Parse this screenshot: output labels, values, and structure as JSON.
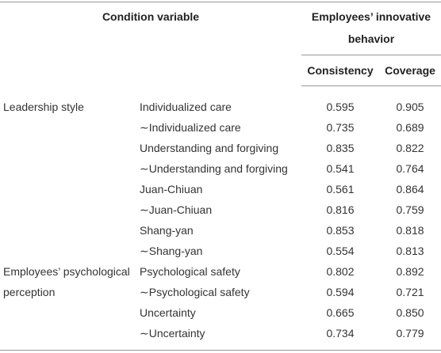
{
  "table": {
    "header": {
      "condition": "Condition variable",
      "outcome": "Employees’ innovative behavior",
      "columns": [
        "Consistency",
        "Coverage"
      ]
    },
    "groups": [
      {
        "label": "Leadership style",
        "rows": [
          [
            "Individualized care",
            "0.595",
            "0.905"
          ],
          [
            "∼Individualized care",
            "0.735",
            "0.689"
          ],
          [
            "Understanding and forgiving",
            "0.835",
            "0.822"
          ],
          [
            "∼Understanding and forgiving",
            "0.541",
            "0.764"
          ],
          [
            "Juan-Chiuan",
            "0.561",
            "0.864"
          ],
          [
            "∼Juan-Chiuan",
            "0.816",
            "0.759"
          ],
          [
            "Shang-yan",
            "0.853",
            "0.818"
          ],
          [
            "∼Shang-yan",
            "0.554",
            "0.813"
          ]
        ]
      },
      {
        "label": "Employees’ psychological perception",
        "rows": [
          [
            "Psychological safety",
            "0.802",
            "0.892"
          ],
          [
            "∼Psychological safety",
            "0.594",
            "0.721"
          ],
          [
            "Uncertainty",
            "0.665",
            "0.850"
          ],
          [
            "∼Uncertainty",
            "0.734",
            "0.779"
          ]
        ]
      }
    ]
  }
}
